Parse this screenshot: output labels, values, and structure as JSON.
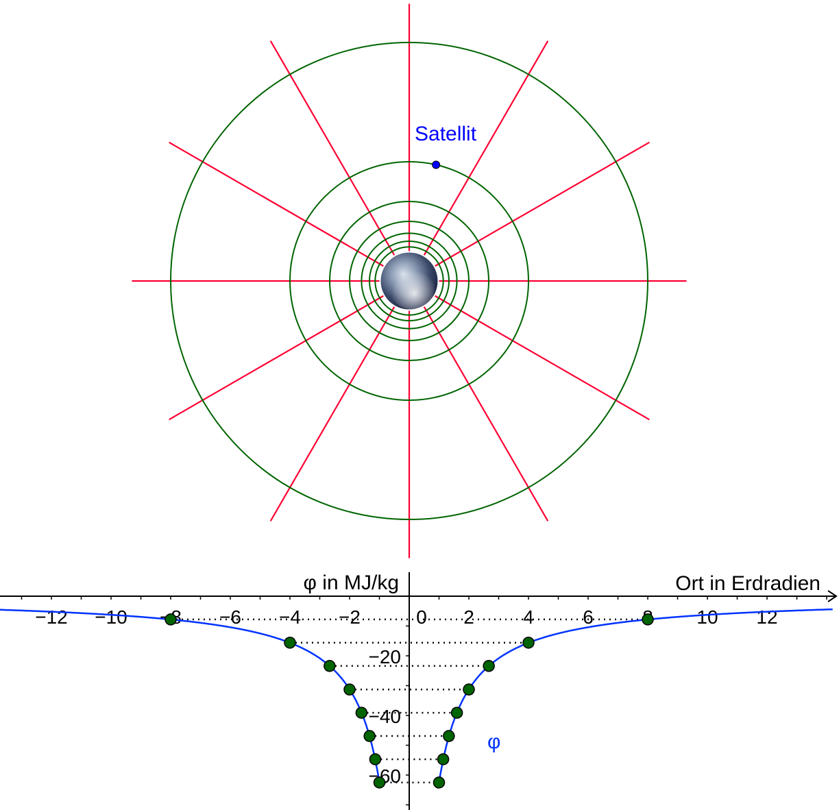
{
  "field_diagram": {
    "center_body": "earth",
    "equipotential_radii_earth_radii": [
      8,
      4,
      2.6667,
      2,
      1.6,
      1.3333,
      1.1429
    ],
    "field_line_count": 12,
    "field_line_length_earth_radii": 9.3,
    "satellite": {
      "label": "Satellit",
      "r_earth_radii": 4,
      "angle_deg_from_up": 13
    },
    "colors": {
      "equipotential": "#006400",
      "field_lines": "#ff0033",
      "satellite": "#0000ff"
    }
  },
  "chart_data": {
    "type": "line",
    "xlabel": "Ort in Erdradien",
    "ylabel": "φ in MJ/kg",
    "series_label": "φ",
    "x_ticks": [
      -12,
      -10,
      -8,
      -6,
      -4,
      -2,
      0,
      2,
      4,
      6,
      8,
      10,
      12
    ],
    "y_ticks": [
      -20,
      -40,
      -60
    ],
    "xlim": [
      -13.7,
      14.1
    ],
    "ylim": [
      -71,
      0
    ],
    "function": "φ = -62.5 / |x|, |x| ≥ 1",
    "points": [
      {
        "x": -8,
        "y": -7.8
      },
      {
        "x": -4,
        "y": -15.6
      },
      {
        "x": -2.67,
        "y": -23.4
      },
      {
        "x": -2,
        "y": -31.3
      },
      {
        "x": -1.6,
        "y": -39.1
      },
      {
        "x": -1.33,
        "y": -46.9
      },
      {
        "x": -1.14,
        "y": -54.7
      },
      {
        "x": -1,
        "y": -62.5
      },
      {
        "x": 8,
        "y": -7.8
      },
      {
        "x": 4,
        "y": -15.6
      },
      {
        "x": 2.67,
        "y": -23.4
      },
      {
        "x": 2,
        "y": -31.3
      },
      {
        "x": 1.6,
        "y": -39.1
      },
      {
        "x": 1.33,
        "y": -46.9
      },
      {
        "x": 1.14,
        "y": -54.7
      },
      {
        "x": 1,
        "y": -62.5
      }
    ],
    "colors": {
      "curve": "#0033ff",
      "points": "#006400",
      "axes": "#000000"
    }
  }
}
